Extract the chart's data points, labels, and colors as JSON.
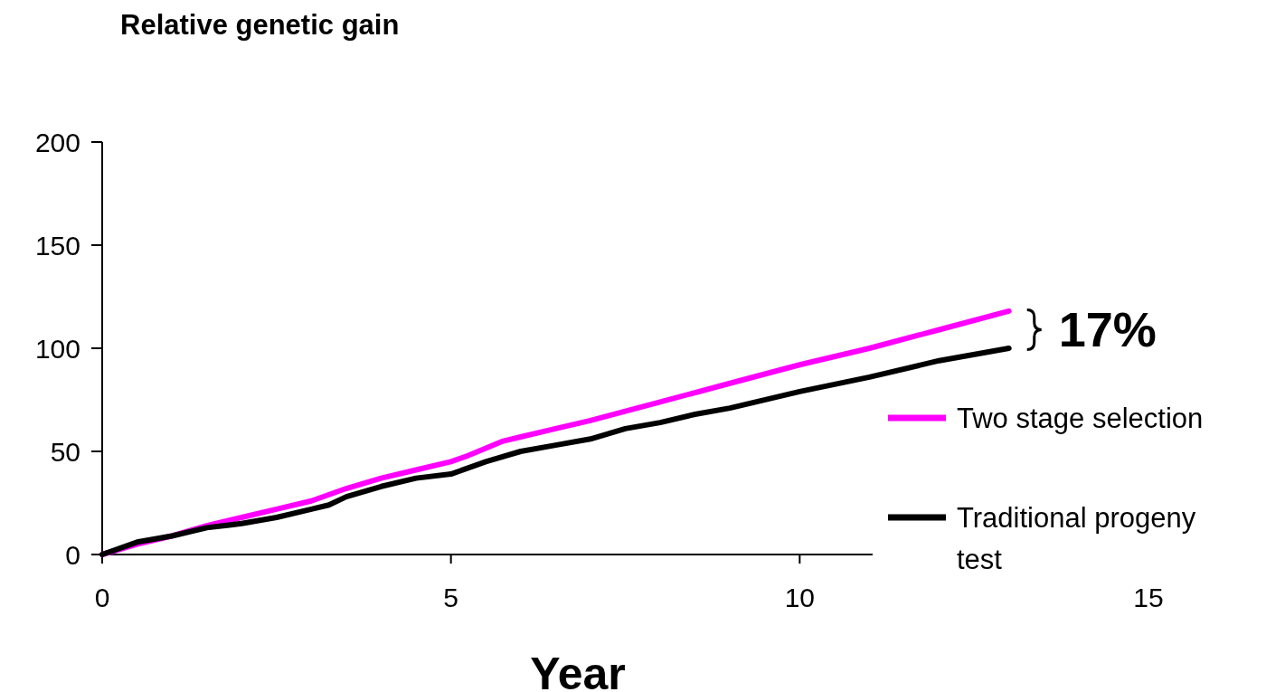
{
  "chart_data": {
    "type": "line",
    "title": "Relative genetic gain",
    "xlabel": "Year",
    "xlim": [
      0,
      15
    ],
    "xticks": [
      0,
      5,
      10,
      15
    ],
    "ylim": [
      0,
      200
    ],
    "yticks": [
      0,
      50,
      100,
      150,
      200
    ],
    "grid": false,
    "legend": "right",
    "marker": "none",
    "line_style": "solid",
    "annotations": [
      "17%"
    ],
    "series": [
      {
        "name": "Two stage selection",
        "color": "#ff00ff",
        "x": [
          0,
          0.5,
          1,
          1.5,
          2,
          2.5,
          3,
          3.5,
          4,
          4.5,
          5,
          5.25,
          5.75,
          6,
          6.5,
          7,
          8,
          9,
          10,
          11,
          12,
          13
        ],
        "values": [
          0,
          5,
          9,
          14,
          18,
          22,
          26,
          32,
          37,
          41,
          45,
          48,
          55,
          57,
          61,
          65,
          74,
          83,
          92,
          100,
          109,
          118
        ]
      },
      {
        "name": "Traditional progeny test",
        "color": "#000000",
        "x": [
          0,
          0.5,
          1,
          1.5,
          2,
          2.5,
          3,
          3.25,
          3.5,
          4,
          4.5,
          5,
          5.5,
          6,
          6.5,
          7,
          7.5,
          8,
          8.5,
          9,
          10,
          11,
          12,
          13
        ],
        "values": [
          0,
          6,
          9,
          13,
          15,
          18,
          22,
          24,
          28,
          33,
          37,
          39,
          45,
          50,
          53,
          56,
          61,
          64,
          68,
          71,
          79,
          86,
          94,
          100
        ]
      }
    ]
  }
}
